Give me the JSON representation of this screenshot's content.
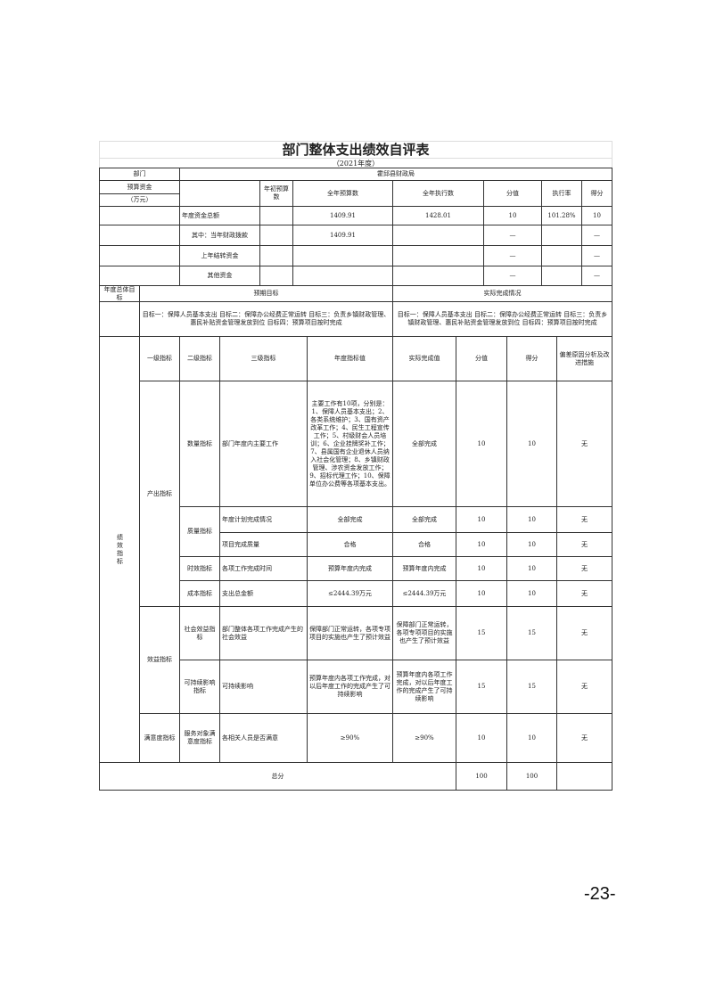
{
  "title": "部门整体支出绩效自评表",
  "subtitle": "（2021年度）",
  "budget": {
    "dept_label": "部门",
    "dept_value": "霍邱县财政局",
    "funds_label": "预算资金",
    "unit_label": "（万元）",
    "headers": [
      "年初预算数",
      "全年预算数",
      "全年执行数",
      "分值",
      "执行率",
      "得分"
    ],
    "rows": [
      {
        "label": "年度资金总额",
        "initial": "",
        "budget": "1409.91",
        "exec": "1428.01",
        "value": "10",
        "rate": "101.28%",
        "score": "10"
      },
      {
        "label": "其中：当年财政拨款",
        "initial": "",
        "budget": "1409.91",
        "exec": "",
        "value": "—",
        "rate": "",
        "score": "—"
      },
      {
        "label": "上年结转资金",
        "initial": "",
        "budget": "",
        "exec": "",
        "value": "—",
        "rate": "",
        "score": "—"
      },
      {
        "label": "其他资金",
        "initial": "",
        "budget": "",
        "exec": "",
        "value": "—",
        "rate": "",
        "score": "—"
      }
    ]
  },
  "goals": {
    "label": "年度总体目标",
    "expected_header": "预期目标",
    "actual_header": "实际完成情况",
    "expected": "目标一：保障人员基本支出 目标二：保障办公经费正常运转 目标三：负责乡镇财政管理、惠民补贴资金管理发放到位 目标四：预算项目按时完成",
    "actual": "目标一：保障人员基本支出 目标二：保障办公经费正常运转 目标三：负责乡镇财政管理、惠民补贴资金管理发放到位 目标四：预算项目按时完成"
  },
  "indicators": {
    "section_label": "绩效指标",
    "headers": [
      "一级指标",
      "二级指标",
      "三级指标",
      "年度指标值",
      "实际完成值",
      "分值",
      "得分",
      "偏差原因分析及改进措施"
    ],
    "level1": [
      "产出指标",
      "效益指标",
      "满意度指标"
    ],
    "level2": [
      "数量指标",
      "质量指标",
      "时效指标",
      "成本指标",
      "社会效益指标",
      "可持续影响指标",
      "服务对象满意度指标"
    ],
    "rows": [
      {
        "l3": "部门年度内主要工作",
        "target": "主要工作有10项，分别是：1、保障人员基本支出；2、各类系统维护；3、国有资产改革工作；4、民生工程宣传工作；5、村级财会人员培训；6、企业挂牌奖补工作；7、县属国有企业退休人员纳入社会化管理；8、乡镇财政管理、涉农资金发放工作；9、招标代理工作；10、保障单位办公费等各项基本支出。",
        "actual": "全部完成",
        "value": "10",
        "score": "10",
        "deviation": "无"
      },
      {
        "l3": "年度计划完成情况",
        "target": "全部完成",
        "actual": "全部完成",
        "value": "10",
        "score": "10",
        "deviation": "无"
      },
      {
        "l3": "项目完成质量",
        "target": "合格",
        "actual": "合格",
        "value": "10",
        "score": "10",
        "deviation": "无"
      },
      {
        "l3": "各项工作完成时间",
        "target": "预算年度内完成",
        "actual": "预算年度内完成",
        "value": "10",
        "score": "10",
        "deviation": "无"
      },
      {
        "l3": "支出总金额",
        "target": "≤2444.39万元",
        "actual": "≤2444.39万元",
        "value": "10",
        "score": "10",
        "deviation": "无"
      },
      {
        "l3": "部门整体各项工作完成产生的社会效益",
        "target": "保障部门正常运转，各项专项项目的实施也产生了预计效益",
        "actual": "保障部门正常运转，各项专项项目的实施也产生了预计效益",
        "value": "15",
        "score": "15",
        "deviation": "无"
      },
      {
        "l3": "可持续影响",
        "target": "预算年度内各项工作完成，对以后年度工作的完成产生了可持续影响",
        "actual": "预算年度内各项工作完成，对以后年度工作的完成产生了可持续影响",
        "value": "15",
        "score": "15",
        "deviation": "无"
      },
      {
        "l3": "各相关人员是否满意",
        "target": "≥90%",
        "actual": "≥90%",
        "value": "10",
        "score": "10",
        "deviation": "无"
      }
    ]
  },
  "total": {
    "label": "总分",
    "value": "100",
    "score": "100",
    "deviation": ""
  },
  "page_number": "-23-"
}
